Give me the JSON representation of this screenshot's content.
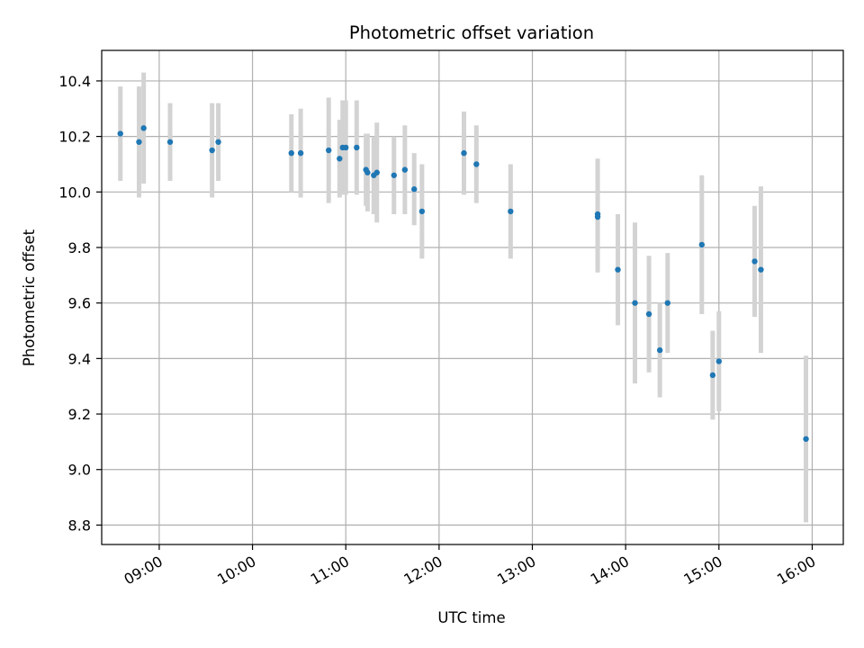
{
  "chart_data": {
    "type": "scatter",
    "title": "Photometric offset variation",
    "xlabel": "UTC time",
    "ylabel": "Photometric offset",
    "x_ticks": [
      "09:00",
      "10:00",
      "11:00",
      "12:00",
      "13:00",
      "14:00",
      "15:00",
      "16:00"
    ],
    "y_ticks": [
      "8.8",
      "9.0",
      "9.2",
      "9.4",
      "9.6",
      "9.8",
      "10.0",
      "10.2",
      "10.4"
    ],
    "xlim": [
      "08:23",
      "16:20"
    ],
    "ylim": [
      8.73,
      10.51
    ],
    "grid": true,
    "colors": {
      "point": "#1f77b4",
      "errorbar": "#d3d3d3",
      "grid": "#b0b0b0"
    },
    "points": [
      {
        "x": "08:35",
        "y": 10.21,
        "err": 0.17
      },
      {
        "x": "08:47",
        "y": 10.18,
        "err": 0.2
      },
      {
        "x": "08:50",
        "y": 10.23,
        "err": 0.2
      },
      {
        "x": "09:07",
        "y": 10.18,
        "err": 0.14
      },
      {
        "x": "09:34",
        "y": 10.15,
        "err": 0.17
      },
      {
        "x": "09:38",
        "y": 10.18,
        "err": 0.14
      },
      {
        "x": "10:25",
        "y": 10.14,
        "err": 0.14
      },
      {
        "x": "10:31",
        "y": 10.14,
        "err": 0.16
      },
      {
        "x": "10:49",
        "y": 10.15,
        "err": 0.19
      },
      {
        "x": "10:56",
        "y": 10.12,
        "err": 0.14
      },
      {
        "x": "10:58",
        "y": 10.16,
        "err": 0.17
      },
      {
        "x": "11:00",
        "y": 10.16,
        "err": 0.17
      },
      {
        "x": "11:07",
        "y": 10.16,
        "err": 0.17
      },
      {
        "x": "11:13",
        "y": 10.08,
        "err": 0.13
      },
      {
        "x": "11:14",
        "y": 10.07,
        "err": 0.14
      },
      {
        "x": "11:18",
        "y": 10.06,
        "err": 0.14
      },
      {
        "x": "11:20",
        "y": 10.07,
        "err": 0.18
      },
      {
        "x": "11:31",
        "y": 10.06,
        "err": 0.14
      },
      {
        "x": "11:38",
        "y": 10.08,
        "err": 0.16
      },
      {
        "x": "11:44",
        "y": 10.01,
        "err": 0.13
      },
      {
        "x": "11:49",
        "y": 9.93,
        "err": 0.17
      },
      {
        "x": "12:16",
        "y": 10.14,
        "err": 0.15
      },
      {
        "x": "12:24",
        "y": 10.1,
        "err": 0.14
      },
      {
        "x": "12:46",
        "y": 9.93,
        "err": 0.17
      },
      {
        "x": "13:42",
        "y": 9.92,
        "err": 0.2
      },
      {
        "x": "13:42",
        "y": 9.91,
        "err": 0.2
      },
      {
        "x": "13:55",
        "y": 9.72,
        "err": 0.2
      },
      {
        "x": "14:06",
        "y": 9.6,
        "err": 0.29
      },
      {
        "x": "14:15",
        "y": 9.56,
        "err": 0.21
      },
      {
        "x": "14:22",
        "y": 9.43,
        "err": 0.17
      },
      {
        "x": "14:27",
        "y": 9.6,
        "err": 0.18
      },
      {
        "x": "14:49",
        "y": 9.81,
        "err": 0.25
      },
      {
        "x": "14:56",
        "y": 9.34,
        "err": 0.16
      },
      {
        "x": "15:00",
        "y": 9.39,
        "err": 0.18
      },
      {
        "x": "15:23",
        "y": 9.75,
        "err": 0.2
      },
      {
        "x": "15:27",
        "y": 9.72,
        "err": 0.3
      },
      {
        "x": "15:56",
        "y": 9.11,
        "err": 0.3
      }
    ]
  }
}
